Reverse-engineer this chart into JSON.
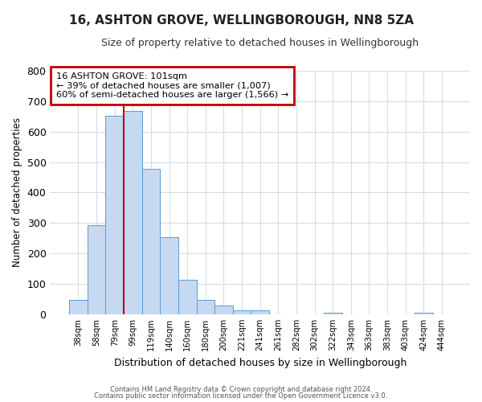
{
  "title": "16, ASHTON GROVE, WELLINGBOROUGH, NN8 5ZA",
  "subtitle": "Size of property relative to detached houses in Wellingborough",
  "xlabel": "Distribution of detached houses by size in Wellingborough",
  "ylabel": "Number of detached properties",
  "bar_labels": [
    "38sqm",
    "58sqm",
    "79sqm",
    "99sqm",
    "119sqm",
    "140sqm",
    "160sqm",
    "180sqm",
    "200sqm",
    "221sqm",
    "241sqm",
    "261sqm",
    "282sqm",
    "302sqm",
    "322sqm",
    "343sqm",
    "363sqm",
    "383sqm",
    "403sqm",
    "424sqm",
    "444sqm"
  ],
  "bar_heights": [
    48,
    293,
    651,
    668,
    478,
    253,
    113,
    48,
    28,
    14,
    14,
    0,
    0,
    0,
    5,
    0,
    0,
    0,
    0,
    5,
    0
  ],
  "bar_color": "#c6d9f0",
  "bar_edge_color": "#5b9bd5",
  "annotation_title": "16 ASHTON GROVE: 101sqm",
  "annotation_line1": "← 39% of detached houses are smaller (1,007)",
  "annotation_line2": "60% of semi-detached houses are larger (1,566) →",
  "annotation_box_color": "#ffffff",
  "annotation_box_edge": "#c00000",
  "vline_x": 3.0,
  "ylim": [
    0,
    800
  ],
  "yticks": [
    0,
    100,
    200,
    300,
    400,
    500,
    600,
    700,
    800
  ],
  "background_color": "#ffffff",
  "grid_color": "#d4dce8",
  "footer_line1": "Contains HM Land Registry data © Crown copyright and database right 2024.",
  "footer_line2": "Contains public sector information licensed under the Open Government Licence v3.0."
}
